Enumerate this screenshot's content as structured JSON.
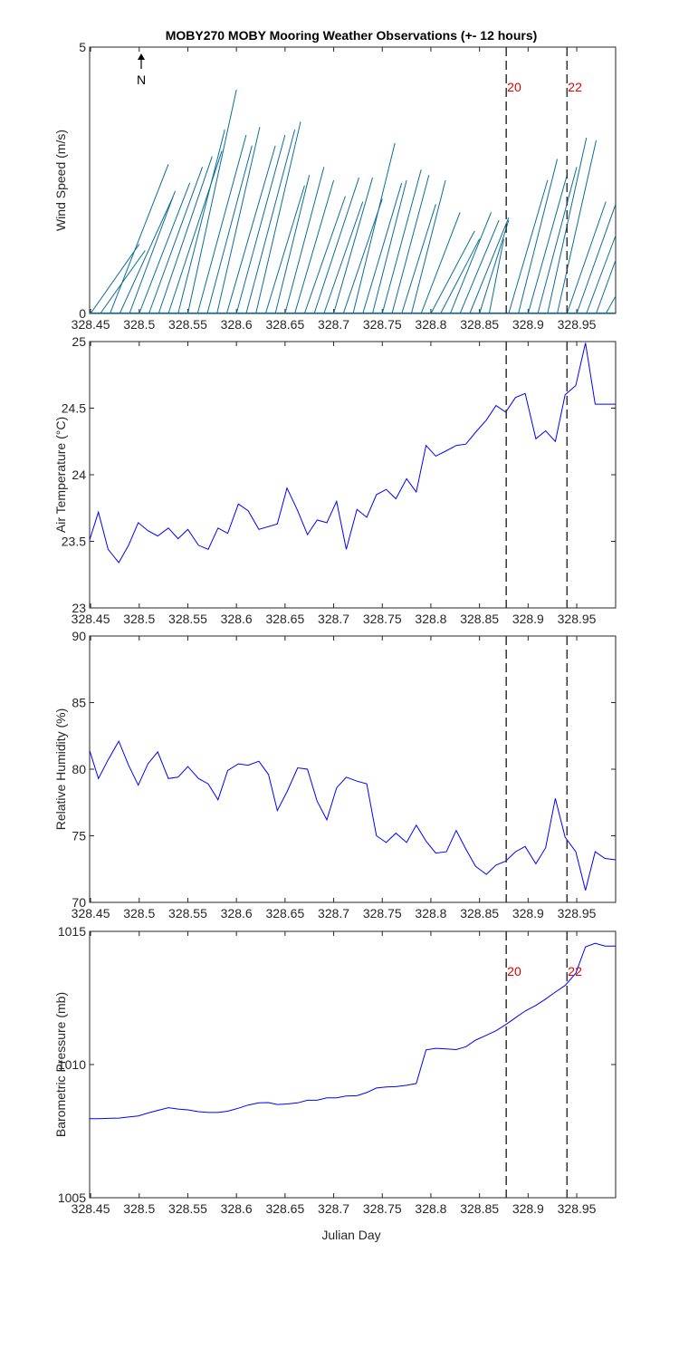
{
  "figure": {
    "title": "MOBY270 MOBY Mooring Weather Observations (+- 12 hours)",
    "north_label": "N",
    "xlabel": "Julian Day",
    "colors": {
      "series": "#0000ff",
      "wind": "#0a6e96",
      "marker_text": "#e60000",
      "axis": "#262626"
    }
  },
  "chart_data": [
    {
      "type": "quiver",
      "ylabel": "Wind Speed (m/s)",
      "xlim": [
        328.449,
        328.99
      ],
      "ylim": [
        0,
        5
      ],
      "xticks": [
        328.45,
        328.5,
        328.55,
        328.6,
        328.65,
        328.7,
        328.75,
        328.8,
        328.85,
        328.9,
        328.95
      ],
      "yticks": [
        0,
        5
      ],
      "markers": [
        {
          "x": 328.8775,
          "label": "20"
        },
        {
          "x": 328.94,
          "label": "22"
        }
      ],
      "vectors": [
        {
          "x": 328.45,
          "dx": 0.05,
          "dy": 1.3
        },
        {
          "x": 328.46,
          "dx": 0.046,
          "dy": 1.18
        },
        {
          "x": 328.47,
          "dx": 0.06,
          "dy": 2.8
        },
        {
          "x": 328.48,
          "dx": 0.055,
          "dy": 2.2
        },
        {
          "x": 328.49,
          "dx": 0.047,
          "dy": 2.3
        },
        {
          "x": 328.5,
          "dx": 0.052,
          "dy": 2.45
        },
        {
          "x": 328.51,
          "dx": 0.055,
          "dy": 2.75
        },
        {
          "x": 328.52,
          "dx": 0.055,
          "dy": 2.95
        },
        {
          "x": 328.53,
          "dx": 0.055,
          "dy": 3.05
        },
        {
          "x": 328.54,
          "dx": 0.048,
          "dy": 3.45
        },
        {
          "x": 328.55,
          "dx": 0.05,
          "dy": 4.2
        },
        {
          "x": 328.56,
          "dx": 0.05,
          "dy": 3.35
        },
        {
          "x": 328.57,
          "dx": 0.046,
          "dy": 3.15
        },
        {
          "x": 328.58,
          "dx": 0.044,
          "dy": 3.5
        },
        {
          "x": 328.59,
          "dx": 0.05,
          "dy": 3.15
        },
        {
          "x": 328.6,
          "dx": 0.05,
          "dy": 3.35
        },
        {
          "x": 328.61,
          "dx": 0.05,
          "dy": 3.45
        },
        {
          "x": 328.62,
          "dx": 0.046,
          "dy": 3.6
        },
        {
          "x": 328.63,
          "dx": 0.04,
          "dy": 2.4
        },
        {
          "x": 328.64,
          "dx": 0.035,
          "dy": 2.6
        },
        {
          "x": 328.65,
          "dx": 0.04,
          "dy": 2.75
        },
        {
          "x": 328.66,
          "dx": 0.04,
          "dy": 2.5
        },
        {
          "x": 328.67,
          "dx": 0.042,
          "dy": 2.2
        },
        {
          "x": 328.68,
          "dx": 0.046,
          "dy": 2.55
        },
        {
          "x": 328.69,
          "dx": 0.04,
          "dy": 2.1
        },
        {
          "x": 328.7,
          "dx": 0.04,
          "dy": 2.55
        },
        {
          "x": 328.71,
          "dx": 0.04,
          "dy": 2.15
        },
        {
          "x": 328.72,
          "dx": 0.043,
          "dy": 3.2
        },
        {
          "x": 328.73,
          "dx": 0.04,
          "dy": 2.45
        },
        {
          "x": 328.74,
          "dx": 0.035,
          "dy": 2.5
        },
        {
          "x": 328.75,
          "dx": 0.04,
          "dy": 2.7
        },
        {
          "x": 328.76,
          "dx": 0.038,
          "dy": 2.6
        },
        {
          "x": 328.77,
          "dx": 0.035,
          "dy": 2.05
        },
        {
          "x": 328.78,
          "dx": 0.035,
          "dy": 2.5
        },
        {
          "x": 328.79,
          "dx": 0.04,
          "dy": 1.9
        },
        {
          "x": 328.8,
          "dx": 0.045,
          "dy": 1.55
        },
        {
          "x": 328.81,
          "dx": 0.04,
          "dy": 1.4
        },
        {
          "x": 328.82,
          "dx": 0.042,
          "dy": 1.9
        },
        {
          "x": 328.83,
          "dx": 0.04,
          "dy": 1.75
        },
        {
          "x": 328.84,
          "dx": 0.04,
          "dy": 1.8
        },
        {
          "x": 328.85,
          "dx": 0.03,
          "dy": 1.75
        },
        {
          "x": 328.86,
          "dx": 0.015,
          "dy": 1.4
        },
        {
          "x": 328.88,
          "dx": 0.04,
          "dy": 2.5
        },
        {
          "x": 328.89,
          "dx": 0.04,
          "dy": 2.9
        },
        {
          "x": 328.9,
          "dx": 0.04,
          "dy": 2.6
        },
        {
          "x": 328.91,
          "dx": 0.04,
          "dy": 2.75
        },
        {
          "x": 328.92,
          "dx": 0.04,
          "dy": 3.3
        },
        {
          "x": 328.93,
          "dx": 0.04,
          "dy": 3.25
        },
        {
          "x": 328.94,
          "dx": 0.04,
          "dy": 2.1
        },
        {
          "x": 328.95,
          "dx": 0.04,
          "dy": 2.05
        },
        {
          "x": 328.96,
          "dx": 0.04,
          "dy": 1.95
        },
        {
          "x": 328.97,
          "dx": 0.04,
          "dy": 2.0
        },
        {
          "x": 328.98,
          "dx": 0.04,
          "dy": 1.3
        },
        {
          "x": 328.99,
          "dx": 0.04,
          "dy": 2.3
        }
      ]
    },
    {
      "type": "line",
      "ylabel": "Air Temperature (°C)",
      "xlim": [
        328.449,
        328.99
      ],
      "ylim": [
        23,
        25
      ],
      "xticks": [
        328.45,
        328.5,
        328.55,
        328.6,
        328.65,
        328.7,
        328.75,
        328.8,
        328.85,
        328.9,
        328.95
      ],
      "yticks": [
        23,
        23.5,
        24,
        24.5,
        25
      ],
      "ytick_labels": [
        "23",
        "23.5",
        "24",
        "24.5",
        "25"
      ],
      "markers": [
        {
          "x": 328.8775,
          "label": ""
        },
        {
          "x": 328.94,
          "label": ""
        }
      ],
      "x": [
        328.449,
        328.458,
        328.468,
        328.479,
        328.489,
        328.499,
        328.509,
        328.519,
        328.53,
        328.54,
        328.55,
        328.561,
        328.571,
        328.581,
        328.591,
        328.602,
        328.612,
        328.623,
        328.642,
        328.652,
        328.663,
        328.673,
        328.683,
        328.693,
        328.703,
        328.713,
        328.724,
        328.734,
        328.744,
        328.754,
        328.764,
        328.775,
        328.785,
        328.795,
        328.805,
        328.816,
        328.826,
        328.836,
        328.846,
        328.857,
        328.867,
        328.877,
        328.887,
        328.897,
        328.908,
        328.918,
        328.928,
        328.938,
        328.949,
        328.959,
        328.969,
        328.979,
        328.99
      ],
      "y": [
        23.51,
        23.72,
        23.44,
        23.34,
        23.47,
        23.64,
        23.58,
        23.54,
        23.6,
        23.52,
        23.59,
        23.47,
        23.44,
        23.6,
        23.56,
        23.78,
        23.73,
        23.59,
        23.63,
        23.9,
        23.73,
        23.55,
        23.66,
        23.64,
        23.8,
        23.44,
        23.74,
        23.68,
        23.85,
        23.89,
        23.82,
        23.97,
        23.87,
        24.22,
        24.14,
        24.18,
        24.22,
        24.23,
        24.32,
        24.41,
        24.52,
        24.47,
        24.58,
        24.61,
        24.27,
        24.33,
        24.25,
        24.6,
        24.67,
        24.99,
        24.53,
        24.53,
        24.53
      ]
    },
    {
      "type": "line",
      "ylabel": "Relative Humidity (%)",
      "xlim": [
        328.449,
        328.99
      ],
      "ylim": [
        70,
        90
      ],
      "xticks": [
        328.45,
        328.5,
        328.55,
        328.6,
        328.65,
        328.7,
        328.75,
        328.8,
        328.85,
        328.9,
        328.95
      ],
      "yticks": [
        70,
        75,
        80,
        85,
        90
      ],
      "ytick_labels": [
        "70",
        "75",
        "80",
        "85",
        "90"
      ],
      "markers": [
        {
          "x": 328.8775,
          "label": ""
        },
        {
          "x": 328.94,
          "label": ""
        }
      ],
      "x": [
        328.449,
        328.458,
        328.468,
        328.479,
        328.489,
        328.499,
        328.509,
        328.519,
        328.53,
        328.54,
        328.55,
        328.561,
        328.571,
        328.581,
        328.591,
        328.602,
        328.612,
        328.623,
        328.633,
        328.642,
        328.652,
        328.663,
        328.673,
        328.683,
        328.693,
        328.703,
        328.713,
        328.724,
        328.734,
        328.744,
        328.754,
        328.764,
        328.775,
        328.785,
        328.795,
        328.805,
        328.816,
        328.826,
        328.836,
        328.846,
        328.857,
        328.867,
        328.877,
        328.887,
        328.897,
        328.908,
        328.918,
        328.928,
        328.938,
        328.949,
        328.959,
        328.969,
        328.979,
        328.99
      ],
      "y": [
        81.4,
        79.3,
        80.7,
        82.1,
        80.3,
        78.8,
        80.4,
        81.3,
        79.3,
        79.4,
        80.2,
        79.3,
        78.9,
        77.7,
        79.9,
        80.4,
        80.3,
        80.6,
        79.6,
        76.9,
        78.3,
        80.1,
        80.0,
        77.6,
        76.2,
        78.6,
        79.4,
        79.1,
        78.9,
        75.0,
        74.5,
        75.2,
        74.5,
        75.8,
        74.6,
        73.7,
        73.8,
        75.4,
        74.0,
        72.7,
        72.1,
        72.8,
        73.1,
        73.8,
        74.2,
        72.9,
        74.1,
        77.8,
        74.9,
        73.8,
        70.9,
        73.8,
        73.3,
        73.2
      ]
    },
    {
      "type": "line",
      "ylabel": "Barometric Pressure (mb)",
      "xlim": [
        328.449,
        328.99
      ],
      "ylim": [
        1005,
        1015
      ],
      "xticks": [
        328.45,
        328.5,
        328.55,
        328.6,
        328.65,
        328.7,
        328.75,
        328.8,
        328.85,
        328.9,
        328.95
      ],
      "yticks": [
        1005,
        1010,
        1015
      ],
      "ytick_labels": [
        "1005",
        "1010",
        "1015"
      ],
      "markers": [
        {
          "x": 328.8775,
          "label": "20"
        },
        {
          "x": 328.94,
          "label": "22"
        }
      ],
      "x": [
        328.449,
        328.458,
        328.468,
        328.479,
        328.489,
        328.499,
        328.509,
        328.519,
        328.53,
        328.54,
        328.55,
        328.561,
        328.571,
        328.581,
        328.591,
        328.602,
        328.612,
        328.623,
        328.633,
        328.642,
        328.652,
        328.663,
        328.673,
        328.683,
        328.693,
        328.703,
        328.713,
        328.724,
        328.734,
        328.744,
        328.754,
        328.764,
        328.775,
        328.785,
        328.795,
        328.805,
        328.816,
        328.826,
        328.836,
        328.846,
        328.857,
        328.867,
        328.877,
        328.887,
        328.897,
        328.908,
        328.918,
        328.928,
        328.938,
        328.949,
        328.959,
        328.969,
        328.979,
        328.99
      ],
      "y": [
        1007.97,
        1007.97,
        1007.98,
        1007.99,
        1008.03,
        1008.07,
        1008.18,
        1008.28,
        1008.38,
        1008.33,
        1008.3,
        1008.23,
        1008.2,
        1008.2,
        1008.25,
        1008.36,
        1008.48,
        1008.56,
        1008.57,
        1008.5,
        1008.52,
        1008.56,
        1008.66,
        1008.66,
        1008.75,
        1008.75,
        1008.82,
        1008.83,
        1008.95,
        1009.12,
        1009.16,
        1009.17,
        1009.22,
        1009.29,
        1010.55,
        1010.61,
        1010.59,
        1010.56,
        1010.67,
        1010.92,
        1011.1,
        1011.27,
        1011.5,
        1011.76,
        1012.01,
        1012.22,
        1012.46,
        1012.72,
        1012.97,
        1013.43,
        1014.42,
        1014.55,
        1014.45,
        1014.45
      ]
    }
  ]
}
